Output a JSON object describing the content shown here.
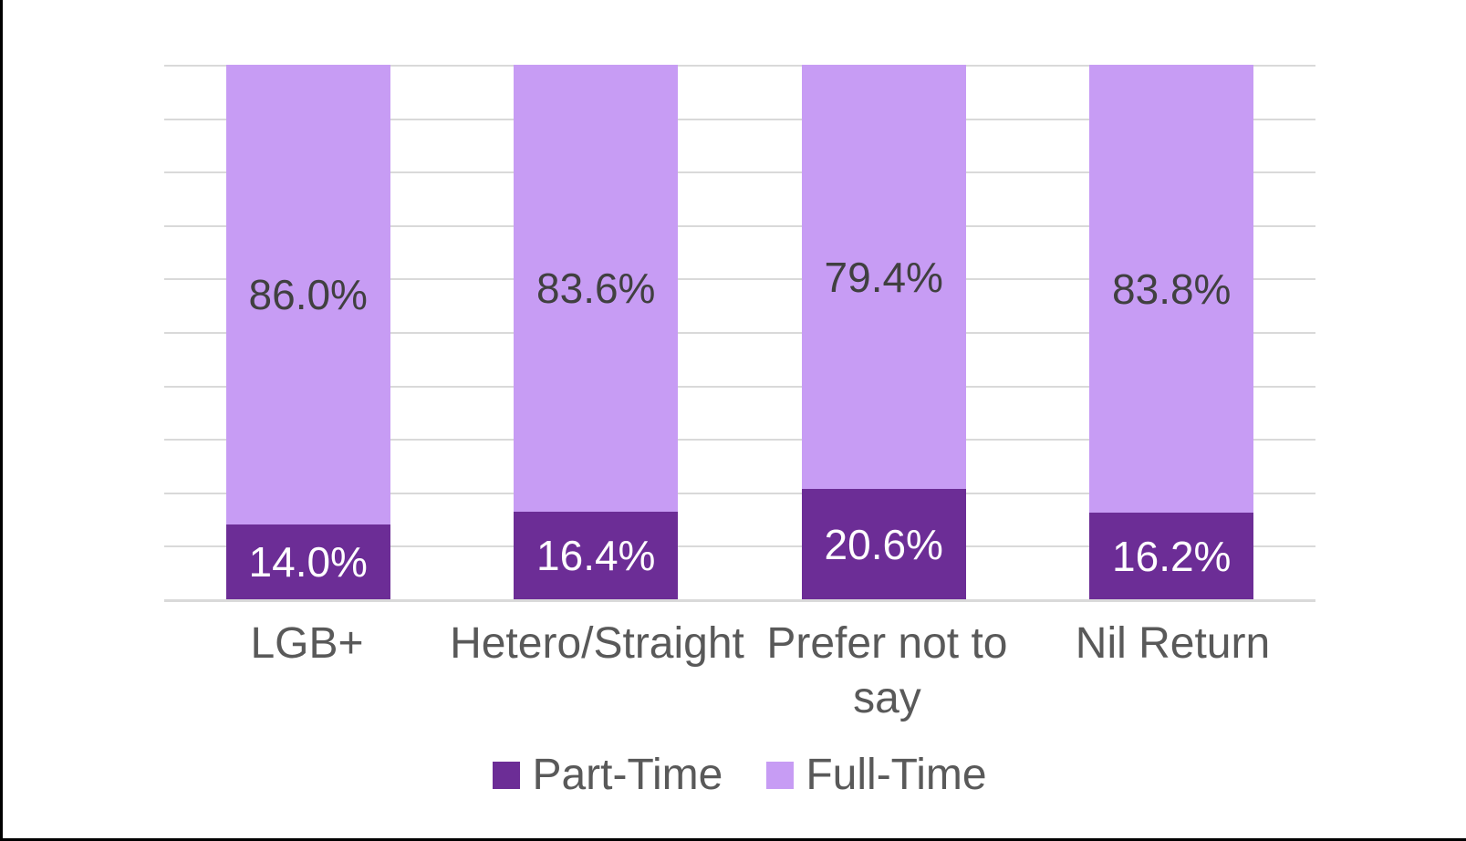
{
  "page": {
    "background_color": "#ffffff",
    "frame_border_color": "#000000"
  },
  "chart_data": {
    "type": "bar",
    "stacked": true,
    "title": "",
    "xlabel": "",
    "ylabel": "",
    "ylim": [
      0,
      100
    ],
    "gridlines": {
      "show": true,
      "color": "#d9d9d9",
      "interval_pct": 10
    },
    "axis_line_color": "#d9d9d9",
    "legend_position": "bottom",
    "categories": [
      "LGB+",
      "Hetero/Straight",
      "Prefer not to say",
      "Nil Return"
    ],
    "series": [
      {
        "name": "Part-Time",
        "color": "#6c2d96",
        "values": [
          14.0,
          16.4,
          20.6,
          16.2
        ]
      },
      {
        "name": "Full-Time",
        "color": "#c79cf4",
        "values": [
          86.0,
          83.6,
          79.4,
          83.8
        ]
      }
    ],
    "bars": [
      {
        "category": "LGB+",
        "part_pct": 14.0,
        "full_pct": 86.0,
        "part_label": "14.0%",
        "full_label": "86.0%"
      },
      {
        "category": "Hetero/Straight",
        "part_pct": 16.4,
        "full_pct": 83.6,
        "part_label": "16.4%",
        "full_label": "83.6%"
      },
      {
        "category": "Prefer not to say",
        "part_pct": 20.6,
        "full_pct": 79.4,
        "part_label": "20.6%",
        "full_label": "79.4%"
      },
      {
        "category": "Nil Return",
        "part_pct": 16.2,
        "full_pct": 83.8,
        "part_label": "16.2%",
        "full_label": "83.8%"
      }
    ],
    "value_label_color_on_light": "#404040",
    "value_label_color_on_dark": "#ffffff",
    "category_label_color": "#595959"
  },
  "legend": {
    "items": [
      {
        "label": "Part-Time",
        "color": "#6c2d96"
      },
      {
        "label": "Full-Time",
        "color": "#c79cf4"
      }
    ]
  }
}
